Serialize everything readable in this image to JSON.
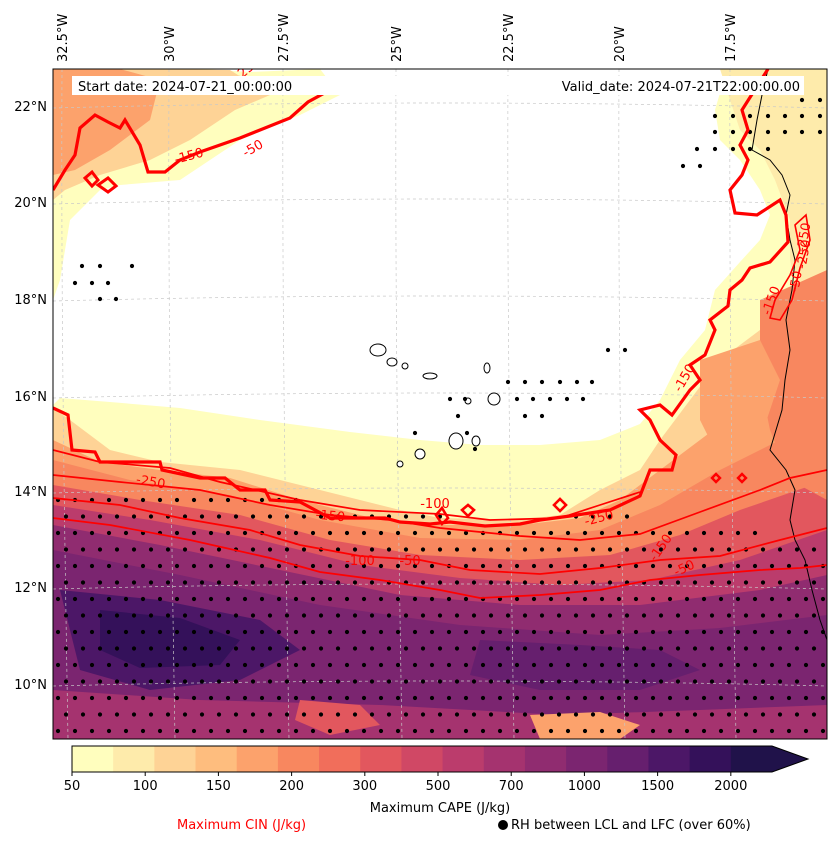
{
  "header": {
    "start_date": "Start date: 2024-07-21_00:00:00",
    "valid_date": "Valid_date: 2024-07-21T22:00:00.00"
  },
  "legend": {
    "cin_label": "Maximum CIN (J/kg)",
    "rh_label": "RH between LCL and LFC (over 60%)",
    "cape_label": "Maximum CAPE (J/kg)"
  },
  "chart_data": {
    "type": "heatmap",
    "title": "",
    "map": {
      "lon_ticks": [
        "32.5°W",
        "30°W",
        "27.5°W",
        "25°W",
        "22.5°W",
        "20°W",
        "17.5°W"
      ],
      "lat_ticks": [
        "22°N",
        "20°N",
        "18°N",
        "16°N",
        "14°N",
        "12°N",
        "10°N"
      ],
      "lon_range": [
        -33,
        -15.4
      ],
      "lat_range": [
        8.9,
        22.8
      ],
      "gridlines": true
    },
    "cape": {
      "variable": "Maximum CAPE",
      "units": "J/kg",
      "levels": [
        50,
        100,
        150,
        200,
        300,
        500,
        700,
        1000,
        1500,
        2000
      ],
      "level_labels": [
        "50",
        "100",
        "150",
        "200",
        "300",
        "500",
        "700",
        "1000",
        "1500",
        "2000"
      ],
      "colors": [
        "#fffebe",
        "#feebab",
        "#fed396",
        "#febd7e",
        "#fca26c",
        "#f8875f",
        "#f16e5b",
        "#e2575e",
        "#d04865",
        "#bb3c6c",
        "#a5336f",
        "#902c70",
        "#7b2570",
        "#661f6e",
        "#4c1767",
        "#34115a",
        "#20124a"
      ],
      "extend": "max"
    },
    "cin_contours": {
      "variable": "Maximum CIN",
      "units": "J/kg",
      "color": "#ff0000",
      "contour_labels": [
        "-250",
        "-150",
        "-50",
        "-250",
        "-100",
        "-150",
        "-100",
        "-50",
        "-250",
        "-150",
        "-50",
        "-150",
        "-50",
        "-150",
        "-250",
        "-250"
      ]
    },
    "rh_stipple": {
      "variable": "RH between LCL and LFC",
      "threshold": "over 60%"
    }
  }
}
